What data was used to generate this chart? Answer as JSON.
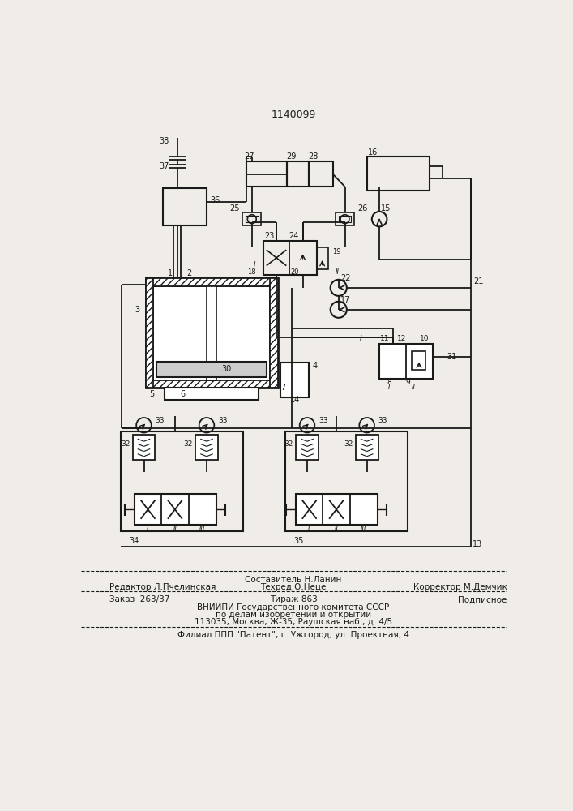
{
  "patent_number": "1140099",
  "bg_color": "#f0ede8",
  "line_color": "#1a1a1a",
  "footer_line1_center_top": "Составитель Н.Ланин",
  "footer_line1_left": "Редактор Л.Пчелинская",
  "footer_line1_center": "Техред О.Неце",
  "footer_line1_right": "Корректор М.Демчик",
  "footer_line2_left": "Заказ  263/37",
  "footer_line2_center": "Тираж 863",
  "footer_line2_right": "Подписное",
  "footer_line3": "ВНИИПИ Государственного комитета СССР",
  "footer_line4": "по делам изобретений и открытий",
  "footer_line5": "113035, Москва, Ж-35, Раушская наб., д. 4/5",
  "footer_line6": "Филиал ППП \"Патент\", г. Ужгород, ул. Проектная, 4"
}
